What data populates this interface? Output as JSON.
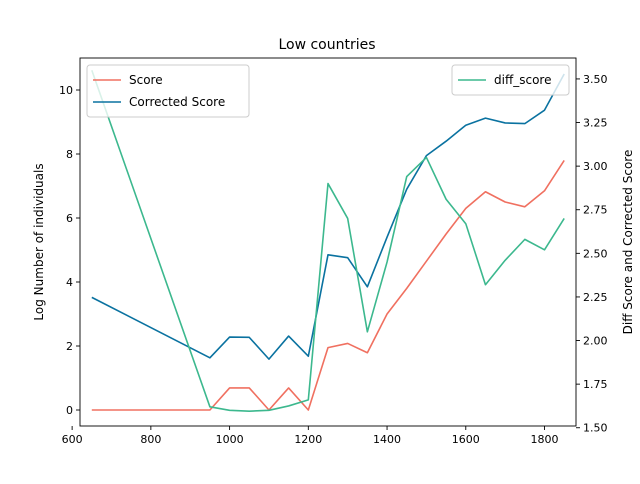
{
  "chart_data": {
    "type": "line",
    "title": "Low countries",
    "xlabel": "",
    "ylabel_left": "Log Number of individuals",
    "ylabel_right": "Diff Score and Corrected Score",
    "xlim": [
      620,
      1880
    ],
    "ylim_left": [
      -0.5,
      11.0
    ],
    "ylim_right": [
      1.51,
      3.62
    ],
    "x_ticks": [
      600,
      800,
      1000,
      1200,
      1400,
      1600,
      1800
    ],
    "y_ticks_left": [
      0,
      2,
      4,
      6,
      8,
      10
    ],
    "y_ticks_right": [
      1.5,
      1.75,
      2.0,
      2.25,
      2.5,
      2.75,
      3.0,
      3.25,
      3.5
    ],
    "x_tick_labels": [
      "600",
      "800",
      "1000",
      "1200",
      "1400",
      "1600",
      "1800"
    ],
    "y_tick_labels_left": [
      "0",
      "2",
      "4",
      "6",
      "8",
      "10"
    ],
    "y_tick_labels_right": [
      "1.50",
      "1.75",
      "2.00",
      "2.25",
      "2.50",
      "2.75",
      "3.00",
      "3.25",
      "3.50"
    ],
    "legend_left": "upper-left",
    "legend_right": "upper-right",
    "series": [
      {
        "name": "Score",
        "axis": "left",
        "color": "#f07060",
        "x": [
          650,
          950,
          1000,
          1050,
          1100,
          1150,
          1200,
          1250,
          1300,
          1350,
          1400,
          1450,
          1500,
          1550,
          1600,
          1650,
          1700,
          1750,
          1800,
          1850
        ],
        "values": [
          0,
          0,
          0.69,
          0.69,
          0,
          0.69,
          0,
          1.95,
          2.08,
          1.79,
          3.0,
          3.8,
          4.65,
          5.5,
          6.3,
          6.82,
          6.5,
          6.35,
          6.85,
          7.8
        ]
      },
      {
        "name": "Corrected Score",
        "axis": "left",
        "color": "#0a72a0",
        "x": [
          650,
          950,
          1000,
          1050,
          1100,
          1150,
          1200,
          1250,
          1300,
          1350,
          1400,
          1450,
          1500,
          1550,
          1600,
          1650,
          1700,
          1750,
          1800,
          1850
        ],
        "values": [
          3.52,
          1.63,
          2.28,
          2.27,
          1.59,
          2.31,
          1.68,
          4.85,
          4.76,
          3.85,
          5.4,
          6.9,
          7.95,
          8.4,
          8.9,
          9.12,
          8.97,
          8.95,
          9.37,
          10.5
        ]
      },
      {
        "name": "diff_score",
        "axis": "right",
        "color": "#3cb88e",
        "x": [
          650,
          950,
          1000,
          1050,
          1100,
          1150,
          1200,
          1250,
          1300,
          1350,
          1400,
          1450,
          1500,
          1550,
          1600,
          1650,
          1700,
          1750,
          1800,
          1850
        ],
        "values": [
          3.55,
          1.62,
          1.6,
          1.595,
          1.6,
          1.625,
          1.66,
          2.9,
          2.7,
          2.05,
          2.45,
          2.94,
          3.05,
          2.81,
          2.67,
          2.32,
          2.46,
          2.58,
          2.52,
          2.7
        ]
      }
    ]
  }
}
